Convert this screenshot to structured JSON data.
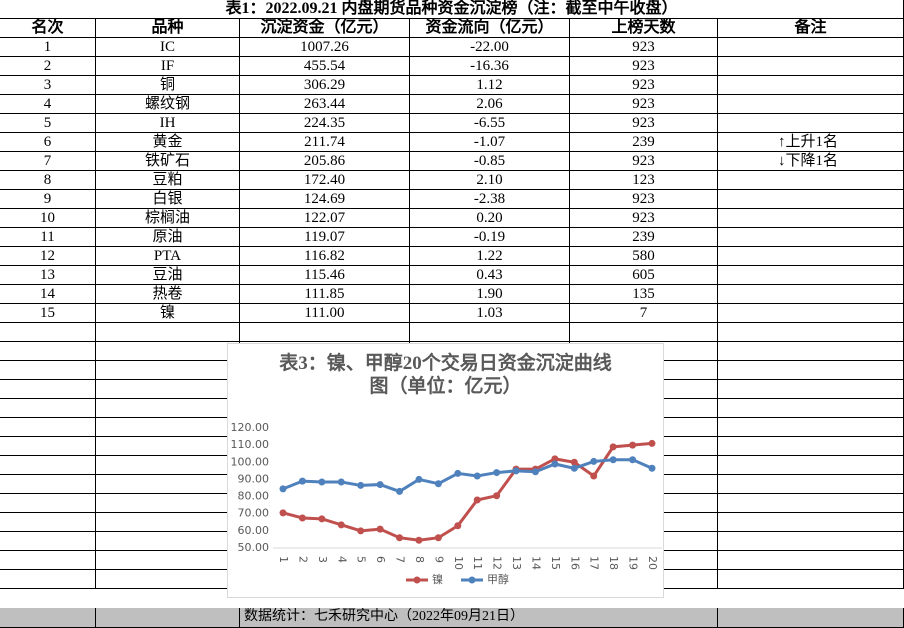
{
  "table": {
    "title": "表1：2022.09.21 内盘期货品种资金沉淀榜（注：截至中午收盘）",
    "headers": [
      "名次",
      "品种",
      "沉淀资金（亿元）",
      "资金流向（亿元）",
      "上榜天数",
      "备注"
    ],
    "rows": [
      [
        "1",
        "IC",
        "1007.26",
        "-22.00",
        "923"
      ],
      [
        "2",
        "IF",
        "455.54",
        "-16.36",
        "923"
      ],
      [
        "3",
        "铜",
        "306.29",
        "1.12",
        "923"
      ],
      [
        "4",
        "螺纹钢",
        "263.44",
        "2.06",
        "923"
      ],
      [
        "5",
        "IH",
        "224.35",
        "-6.55",
        "923"
      ],
      [
        "6",
        "黄金",
        "211.74",
        "-1.07",
        "239",
        "↑上升1名"
      ],
      [
        "7",
        "铁矿石",
        "205.86",
        "-0.85",
        "923",
        "↓下降1名"
      ],
      [
        "8",
        "豆粕",
        "172.40",
        "2.10",
        "123"
      ],
      [
        "9",
        "白银",
        "124.69",
        "-2.38",
        "923"
      ],
      [
        "10",
        "棕榈油",
        "122.07",
        "0.20",
        "923"
      ],
      [
        "11",
        "原油",
        "119.07",
        "-0.19",
        "239"
      ],
      [
        "12",
        "PTA",
        "116.82",
        "1.22",
        "580"
      ],
      [
        "13",
        "豆油",
        "115.46",
        "0.43",
        "605"
      ],
      [
        "14",
        "热卷",
        "111.85",
        "1.90",
        "135"
      ],
      [
        "15",
        "镍",
        "111.00",
        "1.03",
        "7"
      ]
    ],
    "footer": "数据统计：七禾研究中心（2022年09月21日）"
  },
  "chart_data": {
    "type": "line",
    "title": "表3：镍、甲醇20个交易日资金沉淀曲线图（单位：亿元）",
    "categories": [
      "1",
      "2",
      "3",
      "4",
      "5",
      "6",
      "7",
      "8",
      "9",
      "10",
      "11",
      "12",
      "13",
      "14",
      "15",
      "16",
      "17",
      "18",
      "19",
      "20"
    ],
    "series": [
      {
        "name": "镍",
        "color": "#c0504d",
        "values": [
          70.5,
          67.5,
          67,
          63.5,
          60,
          61,
          56,
          54.5,
          56,
          63,
          78,
          80.5,
          96,
          96,
          102,
          100,
          92,
          109,
          110,
          111
        ]
      },
      {
        "name": "甲醇",
        "color": "#4f81bd",
        "values": [
          84.5,
          89,
          88.5,
          88.5,
          86.5,
          87,
          83,
          90,
          87.5,
          93.5,
          92,
          94,
          95,
          94.5,
          99,
          96.5,
          100.5,
          101.5,
          101.5,
          96.5
        ]
      }
    ],
    "ylim": [
      50,
      120
    ],
    "yticks": [
      {
        "value": 50,
        "label": "50.00"
      },
      {
        "value": 60,
        "label": "60.00"
      },
      {
        "value": 70,
        "label": "70.00"
      },
      {
        "value": 80,
        "label": "80.00"
      },
      {
        "value": 90,
        "label": "90.00"
      },
      {
        "value": 100,
        "label": "100.00"
      },
      {
        "value": 110,
        "label": "110.00"
      },
      {
        "value": 120,
        "label": "120.00"
      }
    ],
    "legend": "bottom"
  }
}
